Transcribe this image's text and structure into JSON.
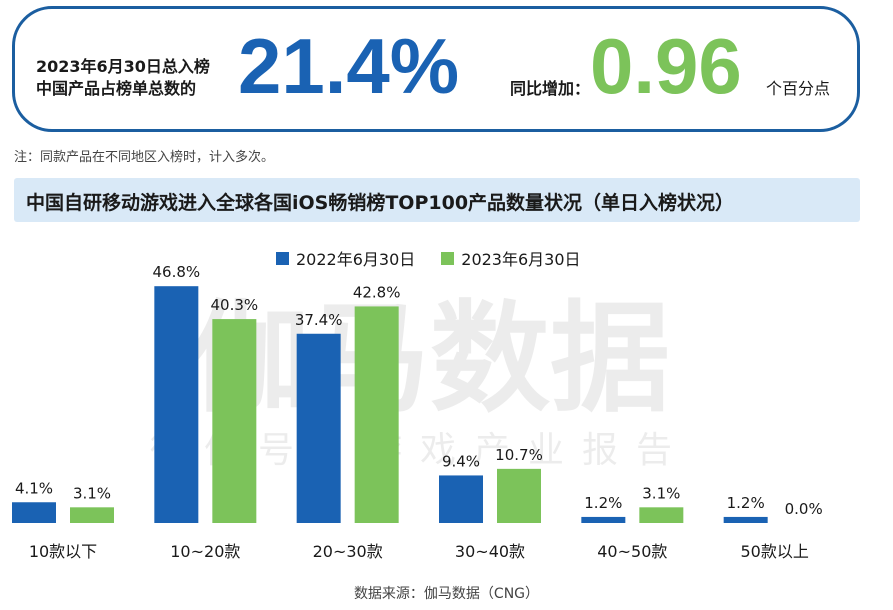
{
  "header": {
    "left_caption_line1": "2023年6月30日总入榜",
    "left_caption_line2": "中国产品占榜单总数的",
    "left_value": "21.4%",
    "right_caption": "同比增加：",
    "right_value": "0.96",
    "right_unit": "个百分点"
  },
  "note": "注：同款产品在不同地区入榜时，计入多次。",
  "source": "数据来源：伽马数据（CNG）",
  "colors": {
    "series1": "#1a62b3",
    "series2": "#7cc35a",
    "border": "#1b5ea0",
    "title_bg": "#d9e9f7"
  },
  "chart_data": {
    "type": "bar",
    "title": "中国自研移动游戏进入全球各国iOS畅销榜TOP100产品数量状况（单日入榜状况）",
    "categories": [
      "10款以下",
      "10~20款",
      "20~30款",
      "30~40款",
      "40~50款",
      "50款以上"
    ],
    "series": [
      {
        "name": "2022年6月30日",
        "values": [
          4.1,
          46.8,
          37.4,
          9.4,
          1.2,
          1.2
        ],
        "labels": [
          "4.1%",
          "46.8%",
          "37.4%",
          "9.4%",
          "1.2%",
          "1.2%"
        ]
      },
      {
        "name": "2023年6月30日",
        "values": [
          3.1,
          40.3,
          42.8,
          10.7,
          3.1,
          0.0
        ],
        "labels": [
          "3.1%",
          "40.3%",
          "42.8%",
          "10.7%",
          "3.1%",
          "0.0%"
        ]
      }
    ],
    "ylim": [
      0,
      50
    ],
    "grid": false,
    "legend_position": "top-center"
  }
}
